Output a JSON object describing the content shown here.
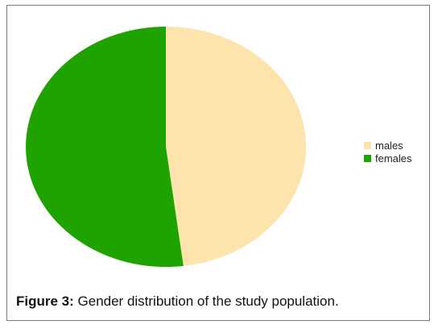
{
  "chart_data": {
    "type": "pie",
    "slices": [
      {
        "label": "males",
        "value": 48,
        "color": "#fde3ac"
      },
      {
        "label": "females",
        "value": 52,
        "color": "#1fa300"
      }
    ],
    "legend_position": "right",
    "start_angle_deg": 0,
    "direction": "clockwise"
  },
  "legend": {
    "items": [
      {
        "label": "males",
        "color": "#fde3ac"
      },
      {
        "label": "females",
        "color": "#1fa300"
      }
    ]
  },
  "caption": {
    "label": "Figure 3:",
    "text": " Gender distribution of the study population."
  }
}
